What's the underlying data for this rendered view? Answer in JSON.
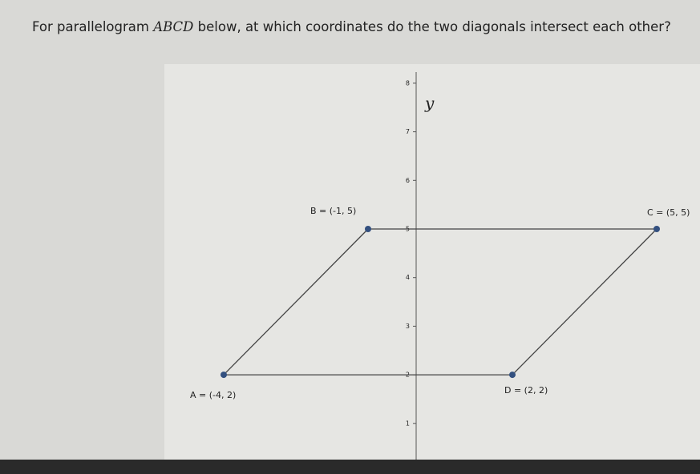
{
  "question": {
    "before": "For parallelogram ",
    "name": "ABCD",
    "after": " below, at which coordinates do the two diagonals intersect each other?"
  },
  "graph": {
    "axis_label": "y",
    "yticks": [
      1,
      2,
      3,
      4,
      5,
      6,
      7,
      8
    ],
    "points": [
      {
        "label": "A = (-4, 2)",
        "x": -4,
        "y": 2
      },
      {
        "label": "B = (-1, 5)",
        "x": -1,
        "y": 5
      },
      {
        "label": "C = (5, 5)",
        "x": 5,
        "y": 5
      },
      {
        "label": "D = (2, 2)",
        "x": 2,
        "y": 2
      }
    ]
  }
}
